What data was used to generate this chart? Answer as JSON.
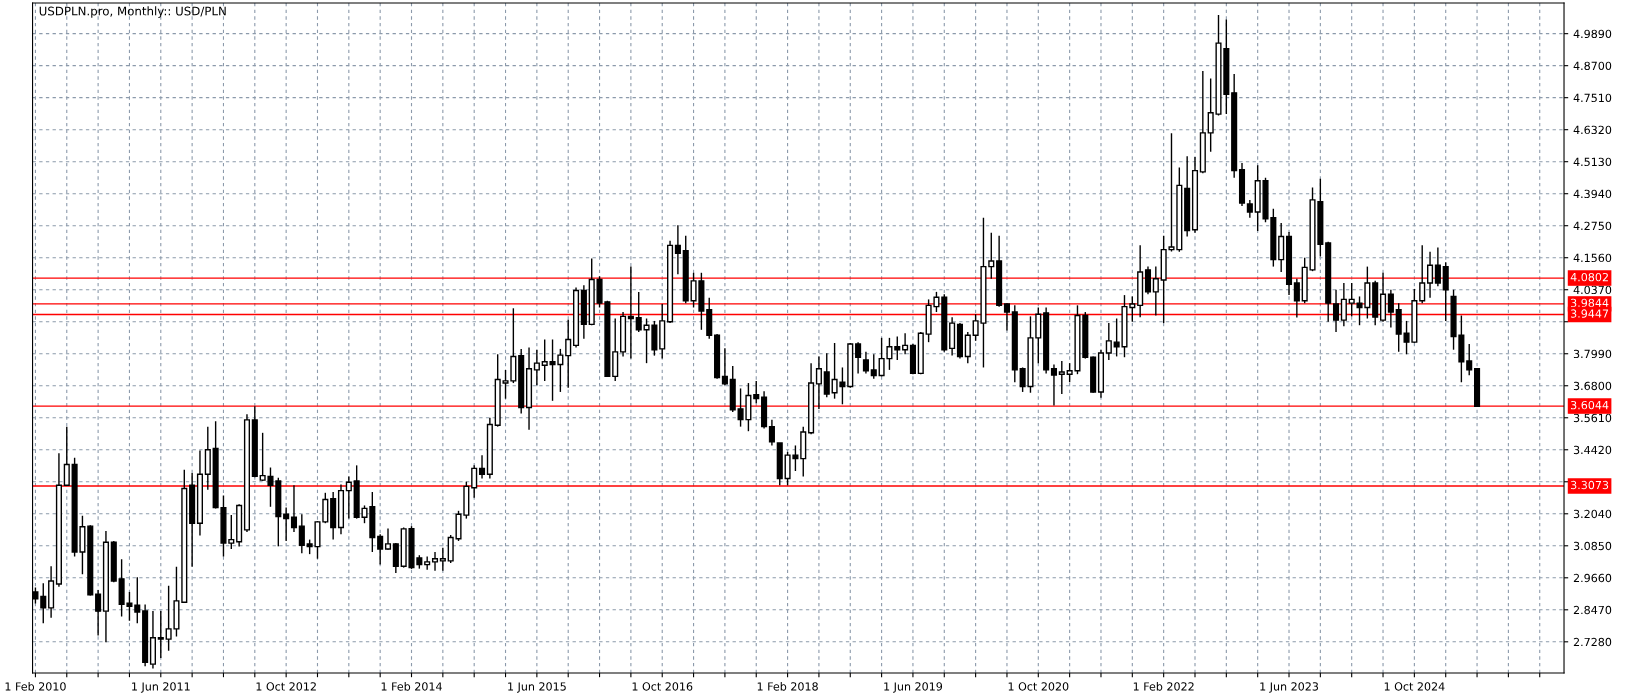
{
  "chart_data": {
    "type": "candlestick",
    "title": "USDPLN.pro, Monthly:: USD/PLN",
    "color": "#000000",
    "grid": true,
    "x": [
      "2010-02",
      "2010-03",
      "2010-04",
      "2010-05",
      "2010-06",
      "2010-07",
      "2010-08",
      "2010-09",
      "2010-10",
      "2010-11",
      "2010-12",
      "2011-01",
      "2011-02",
      "2011-03",
      "2011-04",
      "2011-05",
      "2011-06",
      "2011-07",
      "2011-08",
      "2011-09",
      "2011-10",
      "2011-11",
      "2011-12",
      "2012-01",
      "2012-02",
      "2012-03",
      "2012-04",
      "2012-05",
      "2012-06",
      "2012-07",
      "2012-08",
      "2012-09",
      "2012-10",
      "2012-11",
      "2012-12",
      "2013-01",
      "2013-02",
      "2013-03",
      "2013-04",
      "2013-05",
      "2013-06",
      "2013-07",
      "2013-08",
      "2013-09",
      "2013-10",
      "2013-11",
      "2013-12",
      "2014-01",
      "2014-02",
      "2014-03",
      "2014-04",
      "2014-05",
      "2014-06",
      "2014-07",
      "2014-08",
      "2014-09",
      "2014-10",
      "2014-11",
      "2014-12",
      "2015-01",
      "2015-02",
      "2015-03",
      "2015-04",
      "2015-05",
      "2015-06",
      "2015-07",
      "2015-08",
      "2015-09",
      "2015-10",
      "2015-11",
      "2015-12",
      "2016-01",
      "2016-02",
      "2016-03",
      "2016-04",
      "2016-05",
      "2016-06",
      "2016-07",
      "2016-08",
      "2016-09",
      "2016-10",
      "2016-11",
      "2016-12",
      "2017-01",
      "2017-02",
      "2017-03",
      "2017-04",
      "2017-05",
      "2017-06",
      "2017-07",
      "2017-08",
      "2017-09",
      "2017-10",
      "2017-11",
      "2017-12",
      "2018-01",
      "2018-02",
      "2018-03",
      "2018-04",
      "2018-05",
      "2018-06",
      "2018-07",
      "2018-08",
      "2018-09",
      "2018-10",
      "2018-11",
      "2018-12",
      "2019-01",
      "2019-02",
      "2019-03",
      "2019-04",
      "2019-05",
      "2019-06",
      "2019-07",
      "2019-08",
      "2019-09",
      "2019-10",
      "2019-11",
      "2019-12",
      "2020-01",
      "2020-02",
      "2020-03",
      "2020-04",
      "2020-05",
      "2020-06",
      "2020-07",
      "2020-08",
      "2020-09",
      "2020-10",
      "2020-11",
      "2020-12",
      "2021-01",
      "2021-02",
      "2021-03",
      "2021-04",
      "2021-05",
      "2021-06",
      "2021-07",
      "2021-08",
      "2021-09",
      "2021-10",
      "2021-11",
      "2021-12",
      "2022-01",
      "2022-02",
      "2022-03",
      "2022-04",
      "2022-05",
      "2022-06",
      "2022-07",
      "2022-08",
      "2022-09",
      "2022-10",
      "2022-11",
      "2022-12",
      "2023-01",
      "2023-02",
      "2023-03",
      "2023-04",
      "2023-05",
      "2023-06",
      "2023-07",
      "2023-08",
      "2023-09",
      "2023-10",
      "2023-11",
      "2023-12",
      "2024-01",
      "2024-02",
      "2024-03",
      "2024-04",
      "2024-05",
      "2024-06",
      "2024-07",
      "2024-08",
      "2024-09",
      "2024-10",
      "2024-11",
      "2024-12",
      "2025-01",
      "2025-02",
      "2025-03",
      "2025-04",
      "2025-05",
      "2025-06"
    ],
    "ohlc": [
      [
        2.913,
        2.93,
        2.87,
        2.888
      ],
      [
        2.897,
        2.946,
        2.797,
        2.854
      ],
      [
        2.854,
        3.009,
        2.817,
        2.954
      ],
      [
        2.943,
        3.429,
        2.933,
        3.31
      ],
      [
        3.31,
        3.528,
        3.31,
        3.387
      ],
      [
        3.387,
        3.412,
        3.045,
        3.062
      ],
      [
        3.062,
        3.197,
        2.979,
        3.156
      ],
      [
        3.158,
        3.161,
        2.9,
        2.903
      ],
      [
        2.905,
        2.921,
        2.751,
        2.842
      ],
      [
        2.842,
        3.14,
        2.726,
        3.098
      ],
      [
        3.098,
        3.103,
        2.949,
        2.954
      ],
      [
        2.962,
        3.035,
        2.822,
        2.867
      ],
      [
        2.872,
        2.913,
        2.806,
        2.86
      ],
      [
        2.864,
        2.968,
        2.797,
        2.839
      ],
      [
        2.843,
        2.867,
        2.637,
        2.652
      ],
      [
        2.645,
        2.843,
        2.629,
        2.743
      ],
      [
        2.743,
        2.843,
        2.668,
        2.738
      ],
      [
        2.738,
        2.936,
        2.695,
        2.776
      ],
      [
        2.776,
        3.007,
        2.748,
        2.88
      ],
      [
        2.875,
        3.368,
        2.872,
        3.298
      ],
      [
        3.31,
        3.356,
        3.007,
        3.169
      ],
      [
        3.169,
        3.439,
        3.123,
        3.351
      ],
      [
        3.351,
        3.528,
        3.293,
        3.442
      ],
      [
        3.447,
        3.548,
        3.224,
        3.227
      ],
      [
        3.227,
        3.272,
        3.045,
        3.095
      ],
      [
        3.095,
        3.199,
        3.073,
        3.108
      ],
      [
        3.1,
        3.239,
        3.082,
        3.235
      ],
      [
        3.144,
        3.574,
        3.136,
        3.553
      ],
      [
        3.553,
        3.604,
        3.34,
        3.343
      ],
      [
        3.329,
        3.505,
        3.326,
        3.346
      ],
      [
        3.343,
        3.376,
        3.23,
        3.31
      ],
      [
        3.326,
        3.338,
        3.083,
        3.194
      ],
      [
        3.202,
        3.227,
        3.103,
        3.186
      ],
      [
        3.191,
        3.31,
        3.136,
        3.153
      ],
      [
        3.158,
        3.202,
        3.057,
        3.087
      ],
      [
        3.092,
        3.108,
        3.054,
        3.082
      ],
      [
        3.082,
        3.177,
        3.037,
        3.174
      ],
      [
        3.174,
        3.282,
        3.169,
        3.257
      ],
      [
        3.26,
        3.285,
        3.108,
        3.153
      ],
      [
        3.153,
        3.313,
        3.128,
        3.29
      ],
      [
        3.29,
        3.343,
        3.186,
        3.321
      ],
      [
        3.326,
        3.384,
        3.186,
        3.191
      ],
      [
        3.191,
        3.235,
        3.169,
        3.224
      ],
      [
        3.23,
        3.285,
        3.062,
        3.116
      ],
      [
        3.12,
        3.128,
        3.015,
        3.073
      ],
      [
        3.073,
        3.149,
        3.07,
        3.092
      ],
      [
        3.092,
        3.095,
        2.984,
        3.009
      ],
      [
        3.009,
        3.153,
        3.004,
        3.148
      ],
      [
        3.149,
        3.158,
        2.999,
        3.004
      ],
      [
        3.04,
        3.05,
        3.0,
        3.015
      ],
      [
        3.015,
        3.045,
        2.996,
        3.025
      ],
      [
        3.025,
        3.062,
        2.992,
        3.037
      ],
      [
        3.029,
        3.078,
        2.992,
        3.037
      ],
      [
        3.029,
        3.125,
        3.021,
        3.116
      ],
      [
        3.111,
        3.215,
        3.103,
        3.202
      ],
      [
        3.199,
        3.323,
        3.186,
        3.306
      ],
      [
        3.301,
        3.384,
        3.264,
        3.373
      ],
      [
        3.373,
        3.422,
        3.335,
        3.351
      ],
      [
        3.351,
        3.561,
        3.335,
        3.536
      ],
      [
        3.533,
        3.797,
        3.528,
        3.703
      ],
      [
        3.69,
        3.739,
        3.632,
        3.698
      ],
      [
        3.698,
        3.968,
        3.69,
        3.789
      ],
      [
        3.792,
        3.817,
        3.577,
        3.599
      ],
      [
        3.599,
        3.822,
        3.516,
        3.743
      ],
      [
        3.739,
        3.814,
        3.682,
        3.764
      ],
      [
        3.756,
        3.852,
        3.698,
        3.769
      ],
      [
        3.769,
        3.852,
        3.624,
        3.759
      ],
      [
        3.759,
        3.817,
        3.657,
        3.794
      ],
      [
        3.792,
        3.925,
        3.673,
        3.852
      ],
      [
        3.83,
        4.045,
        3.822,
        4.034
      ],
      [
        4.034,
        4.054,
        3.855,
        3.908
      ],
      [
        3.908,
        4.153,
        3.905,
        4.075
      ],
      [
        4.075,
        4.087,
        3.971,
        3.987
      ],
      [
        3.992,
        3.996,
        3.715,
        3.715
      ],
      [
        3.715,
        3.93,
        3.698,
        3.806
      ],
      [
        3.806,
        3.954,
        3.789,
        3.938
      ],
      [
        3.938,
        4.123,
        3.781,
        3.93
      ],
      [
        3.933,
        4.029,
        3.88,
        3.888
      ],
      [
        3.888,
        3.93,
        3.764,
        3.905
      ],
      [
        3.905,
        3.921,
        3.792,
        3.814
      ],
      [
        3.817,
        3.984,
        3.781,
        3.921
      ],
      [
        3.918,
        4.219,
        3.913,
        4.202
      ],
      [
        4.202,
        4.277,
        4.095,
        4.172
      ],
      [
        4.182,
        4.238,
        3.987,
        3.996
      ],
      [
        3.996,
        4.1,
        3.971,
        4.07
      ],
      [
        4.07,
        4.1,
        3.888,
        3.958
      ],
      [
        3.963,
        4.007,
        3.855,
        3.868
      ],
      [
        3.868,
        3.872,
        3.706,
        3.71
      ],
      [
        3.715,
        3.819,
        3.682,
        3.687
      ],
      [
        3.703,
        3.753,
        3.582,
        3.591
      ],
      [
        3.594,
        3.67,
        3.528,
        3.554
      ],
      [
        3.554,
        3.69,
        3.511,
        3.644
      ],
      [
        3.647,
        3.698,
        3.615,
        3.632
      ],
      [
        3.637,
        3.66,
        3.521,
        3.528
      ],
      [
        3.528,
        3.554,
        3.458,
        3.472
      ],
      [
        3.467,
        3.467,
        3.31,
        3.335
      ],
      [
        3.335,
        3.434,
        3.31,
        3.422
      ],
      [
        3.422,
        3.458,
        3.363,
        3.409
      ],
      [
        3.409,
        3.528,
        3.343,
        3.508
      ],
      [
        3.505,
        3.764,
        3.5,
        3.69
      ],
      [
        3.687,
        3.789,
        3.594,
        3.743
      ],
      [
        3.731,
        3.801,
        3.637,
        3.649
      ],
      [
        3.654,
        3.839,
        3.632,
        3.703
      ],
      [
        3.693,
        3.748,
        3.611,
        3.677
      ],
      [
        3.677,
        3.839,
        3.673,
        3.835
      ],
      [
        3.835,
        3.842,
        3.726,
        3.786
      ],
      [
        3.776,
        3.806,
        3.726,
        3.736
      ],
      [
        3.739,
        3.797,
        3.706,
        3.718
      ],
      [
        3.718,
        3.858,
        3.715,
        3.781
      ],
      [
        3.781,
        3.858,
        3.739,
        3.825
      ],
      [
        3.825,
        3.863,
        3.776,
        3.814
      ],
      [
        3.814,
        3.875,
        3.797,
        3.83
      ],
      [
        3.83,
        3.835,
        3.723,
        3.726
      ],
      [
        3.726,
        3.88,
        3.723,
        3.875
      ],
      [
        3.872,
        4.001,
        3.842,
        3.979
      ],
      [
        3.974,
        4.029,
        3.954,
        4.009
      ],
      [
        4.009,
        4.02,
        3.806,
        3.814
      ],
      [
        3.819,
        3.935,
        3.792,
        3.913
      ],
      [
        3.908,
        3.913,
        3.781,
        3.789
      ],
      [
        3.789,
        3.88,
        3.764,
        3.868
      ],
      [
        3.868,
        3.946,
        3.847,
        3.921
      ],
      [
        3.913,
        4.305,
        3.748,
        4.123
      ],
      [
        4.123,
        4.249,
        4.078,
        4.144
      ],
      [
        4.144,
        4.238,
        3.974,
        3.979
      ],
      [
        3.984,
        3.987,
        3.885,
        3.954
      ],
      [
        3.954,
        3.979,
        3.693,
        3.739
      ],
      [
        3.743,
        3.748,
        3.657,
        3.677
      ],
      [
        3.677,
        3.938,
        3.654,
        3.858
      ],
      [
        3.858,
        3.971,
        3.764,
        3.946
      ],
      [
        3.951,
        3.971,
        3.726,
        3.739
      ],
      [
        3.743,
        3.759,
        3.607,
        3.72
      ],
      [
        3.723,
        3.772,
        3.649,
        3.731
      ],
      [
        3.723,
        3.764,
        3.693,
        3.736
      ],
      [
        3.736,
        3.979,
        3.723,
        3.941
      ],
      [
        3.941,
        3.954,
        3.781,
        3.786
      ],
      [
        3.786,
        3.789,
        3.654,
        3.657
      ],
      [
        3.657,
        3.814,
        3.635,
        3.802
      ],
      [
        3.802,
        3.913,
        3.776,
        3.847
      ],
      [
        3.842,
        3.93,
        3.789,
        3.825
      ],
      [
        3.825,
        4.017,
        3.786,
        3.974
      ],
      [
        3.971,
        4.012,
        3.918,
        3.984
      ],
      [
        3.979,
        4.202,
        3.935,
        4.103
      ],
      [
        4.111,
        4.123,
        4.02,
        4.029
      ],
      [
        4.029,
        4.123,
        3.941,
        4.078
      ],
      [
        4.073,
        4.238,
        3.913,
        4.186
      ],
      [
        4.186,
        4.619,
        4.179,
        4.196
      ],
      [
        4.186,
        4.491,
        4.178,
        4.425
      ],
      [
        4.414,
        4.533,
        4.235,
        4.257
      ],
      [
        4.26,
        4.53,
        4.249,
        4.48
      ],
      [
        4.475,
        4.85,
        4.47,
        4.62
      ],
      [
        4.62,
        4.822,
        4.55,
        4.695
      ],
      [
        4.69,
        5.058,
        4.685,
        4.954
      ],
      [
        4.933,
        5.042,
        4.69,
        4.764
      ],
      [
        4.769,
        4.839,
        4.453,
        4.48
      ],
      [
        4.483,
        4.508,
        4.348,
        4.359
      ],
      [
        4.356,
        4.371,
        4.305,
        4.326
      ],
      [
        4.326,
        4.5,
        4.255,
        4.442
      ],
      [
        4.442,
        4.453,
        4.288,
        4.301
      ],
      [
        4.305,
        4.338,
        4.123,
        4.149
      ],
      [
        4.149,
        4.285,
        4.103,
        4.235
      ],
      [
        4.235,
        4.252,
        4.017,
        4.057
      ],
      [
        4.062,
        4.078,
        3.934,
        3.996
      ],
      [
        3.996,
        4.156,
        3.987,
        4.12
      ],
      [
        4.111,
        4.417,
        4.106,
        4.371
      ],
      [
        4.364,
        4.45,
        4.161,
        4.206
      ],
      [
        4.211,
        4.215,
        3.918,
        3.987
      ],
      [
        3.984,
        4.037,
        3.88,
        3.924
      ],
      [
        3.924,
        4.062,
        3.901,
        4.001
      ],
      [
        3.987,
        4.062,
        3.938,
        4.001
      ],
      [
        3.987,
        4.012,
        3.905,
        3.971
      ],
      [
        3.971,
        4.123,
        3.93,
        4.062
      ],
      [
        4.062,
        4.07,
        3.905,
        3.935
      ],
      [
        3.924,
        4.1,
        3.918,
        4.02
      ],
      [
        4.02,
        4.037,
        3.897,
        3.954
      ],
      [
        3.963,
        3.987,
        3.806,
        3.872
      ],
      [
        3.875,
        3.921,
        3.797,
        3.842
      ],
      [
        3.842,
        4.04,
        3.839,
        3.996
      ],
      [
        3.996,
        4.202,
        3.987,
        4.062
      ],
      [
        4.062,
        4.178,
        4.007,
        4.128
      ],
      [
        4.128,
        4.194,
        4.05,
        4.062
      ],
      [
        4.123,
        4.139,
        3.921,
        4.037
      ],
      [
        4.012,
        4.037,
        3.814,
        3.863
      ],
      [
        3.868,
        3.941,
        3.693,
        3.769
      ],
      [
        3.772,
        3.835,
        3.719,
        3.739
      ],
      [
        3.743,
        3.743,
        3.604,
        3.604
      ]
    ],
    "xlim": [
      "2010-01-20",
      "2026-05-04"
    ],
    "xticks": [
      {
        "value": "2010-02-01",
        "label": "1 Feb 2010"
      },
      {
        "value": "2010-06-01",
        "label": null
      },
      {
        "value": "2010-10-01",
        "label": null
      },
      {
        "value": "2011-02-01",
        "label": null
      },
      {
        "value": "2011-06-01",
        "label": "1 Jun 2011"
      },
      {
        "value": "2011-10-01",
        "label": null
      },
      {
        "value": "2012-02-01",
        "label": null
      },
      {
        "value": "2012-06-01",
        "label": null
      },
      {
        "value": "2012-10-01",
        "label": "1 Oct 2012"
      },
      {
        "value": "2013-02-01",
        "label": null
      },
      {
        "value": "2013-06-01",
        "label": null
      },
      {
        "value": "2013-10-01",
        "label": null
      },
      {
        "value": "2014-02-01",
        "label": "1 Feb 2014"
      },
      {
        "value": "2014-06-01",
        "label": null
      },
      {
        "value": "2014-10-01",
        "label": null
      },
      {
        "value": "2015-02-01",
        "label": null
      },
      {
        "value": "2015-06-01",
        "label": "1 Jun 2015"
      },
      {
        "value": "2015-10-01",
        "label": null
      },
      {
        "value": "2016-02-01",
        "label": null
      },
      {
        "value": "2016-06-01",
        "label": null
      },
      {
        "value": "2016-10-01",
        "label": "1 Oct 2016"
      },
      {
        "value": "2017-02-01",
        "label": null
      },
      {
        "value": "2017-06-01",
        "label": null
      },
      {
        "value": "2017-10-01",
        "label": null
      },
      {
        "value": "2018-02-01",
        "label": "1 Feb 2018"
      },
      {
        "value": "2018-06-01",
        "label": null
      },
      {
        "value": "2018-10-01",
        "label": null
      },
      {
        "value": "2019-02-01",
        "label": null
      },
      {
        "value": "2019-06-01",
        "label": "1 Jun 2019"
      },
      {
        "value": "2019-10-01",
        "label": null
      },
      {
        "value": "2020-02-01",
        "label": null
      },
      {
        "value": "2020-06-01",
        "label": null
      },
      {
        "value": "2020-10-01",
        "label": "1 Oct 2020"
      },
      {
        "value": "2021-02-01",
        "label": null
      },
      {
        "value": "2021-06-01",
        "label": null
      },
      {
        "value": "2021-10-01",
        "label": null
      },
      {
        "value": "2022-02-01",
        "label": "1 Feb 2022"
      },
      {
        "value": "2022-06-01",
        "label": null
      },
      {
        "value": "2022-10-01",
        "label": null
      },
      {
        "value": "2023-02-01",
        "label": null
      },
      {
        "value": "2023-06-01",
        "label": "1 Jun 2023"
      },
      {
        "value": "2023-10-01",
        "label": null
      },
      {
        "value": "2024-02-01",
        "label": null
      },
      {
        "value": "2024-06-01",
        "label": null
      },
      {
        "value": "2024-10-01",
        "label": "1 Oct 2024"
      },
      {
        "value": "2025-02-01",
        "label": null
      },
      {
        "value": "2025-06-01",
        "label": null
      },
      {
        "value": "2025-10-01",
        "label": null
      },
      {
        "value": "2026-02-01",
        "label": null
      }
    ],
    "ylim": [
      2.612,
      5.103
    ],
    "yticks": [
      {
        "value": 2.728,
        "label": "2.7280"
      },
      {
        "value": 2.847,
        "label": "2.8470"
      },
      {
        "value": 2.966,
        "label": "2.9660"
      },
      {
        "value": 3.085,
        "label": "3.0850"
      },
      {
        "value": 3.204,
        "label": "3.2040"
      },
      {
        "value": 3.323,
        "label": null
      },
      {
        "value": 3.442,
        "label": "3.4420"
      },
      {
        "value": 3.561,
        "label": "3.5610"
      },
      {
        "value": 3.68,
        "label": "3.6800"
      },
      {
        "value": 3.799,
        "label": "3.7990"
      },
      {
        "value": 3.918,
        "label": null
      },
      {
        "value": 4.037,
        "label": "4.0370"
      },
      {
        "value": 4.156,
        "label": "4.1560"
      },
      {
        "value": 4.275,
        "label": "4.2750"
      },
      {
        "value": 4.394,
        "label": "4.3940"
      },
      {
        "value": 4.513,
        "label": "4.5130"
      },
      {
        "value": 4.632,
        "label": "4.6320"
      },
      {
        "value": 4.751,
        "label": "4.7510"
      },
      {
        "value": 4.87,
        "label": "4.8700"
      },
      {
        "value": 4.989,
        "label": "4.9890"
      }
    ],
    "ref_lines": [
      {
        "axis": "y",
        "value": 4.0802,
        "label": "4.0802",
        "color": "#ff0000"
      },
      {
        "axis": "y",
        "value": 3.9844,
        "label": "3.9844",
        "color": "#ff0000"
      },
      {
        "axis": "y",
        "value": 3.9447,
        "label": "3.9447",
        "color": "#ff0000"
      },
      {
        "axis": "y",
        "value": 3.6044,
        "label": "3.6044",
        "color": "#ff0000"
      },
      {
        "axis": "y",
        "value": 3.3073,
        "label": "3.3073",
        "color": "#ff0000"
      }
    ]
  }
}
